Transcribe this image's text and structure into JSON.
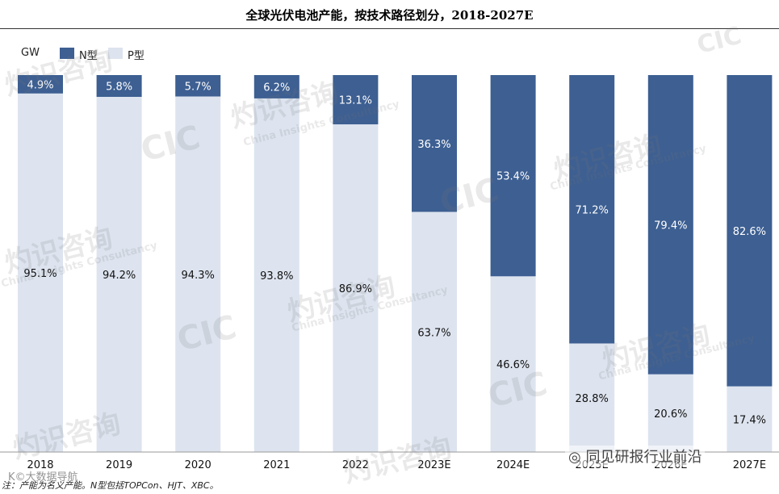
{
  "title": "全球光伏电池产能，按技术路径划分，2018-2027E",
  "legend": {
    "unit": "GW",
    "items": [
      {
        "name": "N型",
        "color": "#3d5f92"
      },
      {
        "name": "P型",
        "color": "#dde4ef"
      }
    ]
  },
  "chart_data": {
    "type": "bar",
    "stacked": true,
    "percent": true,
    "categories": [
      "2018",
      "2019",
      "2020",
      "2021",
      "2022",
      "2023E",
      "2024E",
      "2025E",
      "2026E",
      "2027E"
    ],
    "series": [
      {
        "name": "P型",
        "color": "#dde4ef",
        "values": [
          95.1,
          94.2,
          94.3,
          93.8,
          86.9,
          63.7,
          46.6,
          28.8,
          20.6,
          17.4
        ]
      },
      {
        "name": "N型",
        "color": "#3d5f92",
        "values": [
          4.9,
          5.8,
          5.7,
          6.2,
          13.1,
          36.3,
          53.4,
          71.2,
          79.4,
          82.6
        ]
      }
    ],
    "ylim": [
      0,
      100
    ],
    "unit": "GW",
    "grid": false,
    "legend_position": "top-left"
  },
  "footnote": "注：产能为名义产能。N型包括TOPCon、HJT、XBC。",
  "watermark": {
    "cn": "灼识咨询",
    "en": "China Insights Consultancy",
    "logo": "CIC"
  },
  "wechat_source": "同见研报行业前沿",
  "wechat_badge": "K©大数据导航"
}
